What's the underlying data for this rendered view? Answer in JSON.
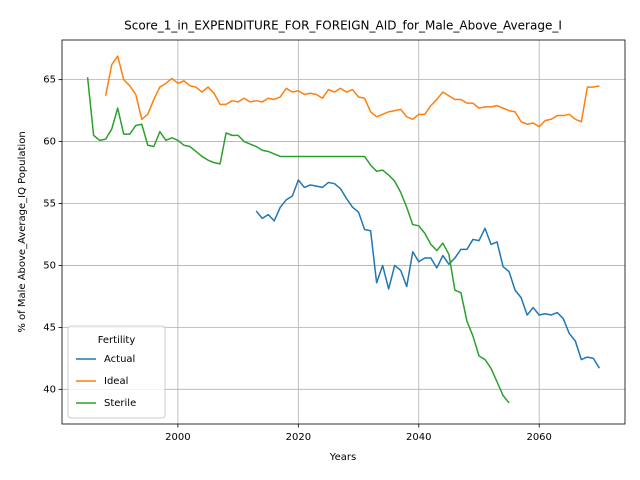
{
  "chart_data": {
    "type": "line",
    "title": "Score_1_in_EXPENDITURE_FOR_FOREIGN_AID_for_Male_Above_Average_I",
    "xlabel": "Years",
    "ylabel": "% of Male Above_Average_IQ Population",
    "legend_title": "Fertility",
    "legend": "lower left",
    "grid": true,
    "xlim": [
      1980.75,
      2074.25
    ],
    "ylim": [
      37.2,
      68.2
    ],
    "xticks": [
      2000,
      2020,
      2040,
      2060
    ],
    "yticks": [
      40,
      45,
      50,
      55,
      60,
      65
    ],
    "x": [
      1985,
      1986,
      1987,
      1988,
      1989,
      1990,
      1991,
      1992,
      1993,
      1994,
      1995,
      1996,
      1997,
      1998,
      1999,
      2000,
      2001,
      2002,
      2003,
      2004,
      2005,
      2006,
      2007,
      2008,
      2009,
      2010,
      2011,
      2012,
      2013,
      2014,
      2015,
      2016,
      2017,
      2018,
      2019,
      2020,
      2021,
      2022,
      2023,
      2024,
      2025,
      2026,
      2027,
      2028,
      2029,
      2030,
      2031,
      2032,
      2033,
      2034,
      2035,
      2036,
      2037,
      2038,
      2039,
      2040,
      2041,
      2042,
      2043,
      2044,
      2045,
      2046,
      2047,
      2048,
      2049,
      2050,
      2051,
      2052,
      2053,
      2054,
      2055,
      2056,
      2057,
      2058,
      2059,
      2060,
      2061,
      2062,
      2063,
      2064,
      2065,
      2066,
      2067,
      2068,
      2069,
      2070
    ],
    "series": [
      {
        "name": "Actual",
        "color": "#1f77b4",
        "values": [
          null,
          null,
          null,
          null,
          null,
          null,
          null,
          null,
          null,
          null,
          null,
          null,
          null,
          null,
          null,
          null,
          null,
          null,
          null,
          null,
          null,
          null,
          null,
          null,
          null,
          null,
          null,
          null,
          54.4,
          53.8,
          54.1,
          53.6,
          54.7,
          55.3,
          55.6,
          56.9,
          56.3,
          56.5,
          56.4,
          56.3,
          56.7,
          56.6,
          56.2,
          55.4,
          54.7,
          54.3,
          52.9,
          52.8,
          48.6,
          50.0,
          48.1,
          50.0,
          49.6,
          48.3,
          51.1,
          50.3,
          50.6,
          50.6,
          49.8,
          50.8,
          50.1,
          50.6,
          51.3,
          51.3,
          52.1,
          52.0,
          53.0,
          51.7,
          51.9,
          49.9,
          49.5,
          48.0,
          47.4,
          46.0,
          46.6,
          46.0,
          46.1,
          46.0,
          46.2,
          45.7,
          44.5,
          43.9,
          42.4,
          42.6,
          42.5,
          41.7
        ]
      },
      {
        "name": "Ideal",
        "color": "#ff7f0e",
        "values": [
          null,
          null,
          null,
          63.7,
          66.2,
          66.9,
          65.0,
          64.5,
          63.8,
          61.8,
          62.2,
          63.4,
          64.4,
          64.7,
          65.1,
          64.7,
          64.9,
          64.5,
          64.4,
          64.0,
          64.4,
          63.9,
          63.0,
          63.0,
          63.3,
          63.2,
          63.5,
          63.2,
          63.3,
          63.2,
          63.5,
          63.4,
          63.6,
          64.3,
          64.0,
          64.1,
          63.8,
          63.9,
          63.8,
          63.5,
          64.2,
          64.0,
          64.3,
          64.0,
          64.2,
          63.6,
          63.5,
          62.4,
          62.0,
          62.2,
          62.4,
          62.5,
          62.6,
          62.0,
          61.8,
          62.2,
          62.2,
          62.9,
          63.4,
          64.0,
          63.7,
          63.4,
          63.4,
          63.1,
          63.1,
          62.7,
          62.8,
          62.8,
          62.9,
          62.7,
          62.5,
          62.4,
          61.6,
          61.4,
          61.5,
          61.2,
          61.7,
          61.8,
          62.1,
          62.1,
          62.2,
          61.8,
          61.6,
          64.4,
          64.4,
          64.5
        ]
      },
      {
        "name": "Sterile",
        "color": "#2ca02c",
        "values": [
          65.2,
          60.5,
          60.1,
          60.2,
          61.0,
          62.7,
          60.6,
          60.6,
          61.3,
          61.4,
          59.7,
          59.6,
          60.8,
          60.1,
          60.3,
          60.1,
          59.7,
          59.6,
          59.2,
          58.8,
          58.5,
          58.3,
          58.2,
          60.7,
          60.5,
          60.5,
          60.0,
          59.8,
          59.6,
          59.3,
          59.2,
          59.0,
          58.8,
          58.8,
          58.8,
          58.8,
          58.8,
          58.8,
          58.8,
          58.8,
          58.8,
          58.8,
          58.8,
          58.8,
          58.8,
          58.8,
          58.8,
          58.1,
          57.6,
          57.7,
          57.3,
          56.8,
          55.9,
          54.7,
          53.3,
          53.2,
          52.6,
          51.7,
          51.2,
          51.8,
          50.9,
          48.0,
          47.8,
          45.5,
          44.3,
          42.7,
          42.4,
          41.7,
          40.6,
          39.5,
          38.9,
          null,
          null,
          null,
          null,
          null,
          null,
          null,
          null,
          null,
          null,
          null,
          null,
          null,
          null,
          null
        ]
      }
    ]
  }
}
